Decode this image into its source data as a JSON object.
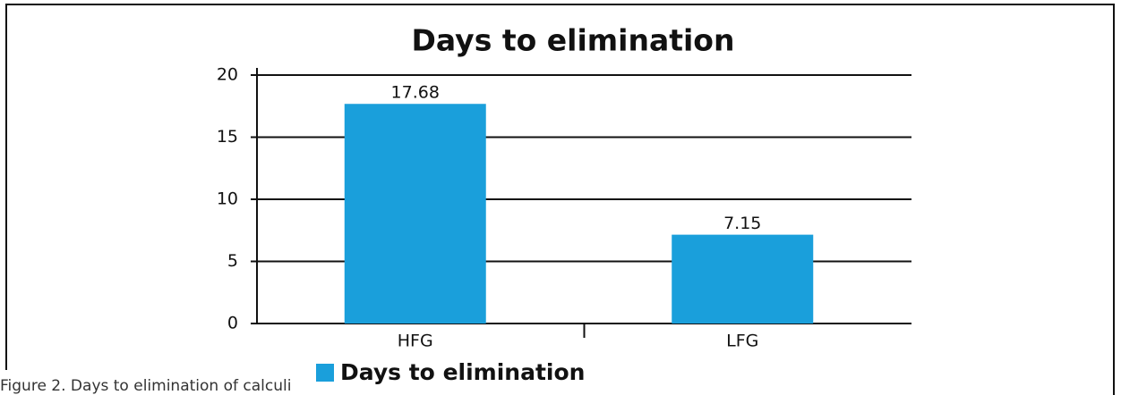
{
  "chart_data": {
    "type": "bar",
    "title": "Days to elimination",
    "categories": [
      "HFG",
      "LFG"
    ],
    "series": [
      {
        "name": "Days to elimination",
        "color": "#1a9fdb",
        "values": [
          17.68,
          7.15
        ]
      }
    ],
    "ylim": [
      0,
      20
    ],
    "yticks": [
      0,
      5,
      10,
      15,
      20
    ],
    "grid": true,
    "legend": "bottom"
  },
  "caption": "Figure 2. Days to elimination of calculi"
}
